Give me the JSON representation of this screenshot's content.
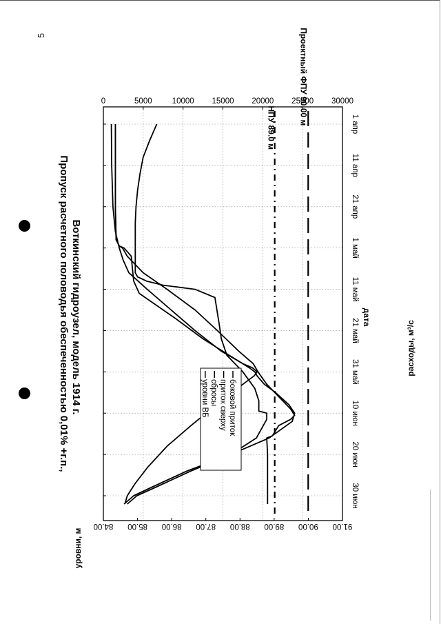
{
  "page_number": "5",
  "chart_data": {
    "type": "line",
    "title": "Пропуск расчетного половодья обеспеченностью 0,01% +г.п.,",
    "subtitle": "Воткинский гидроузел, модель 1914 г.",
    "xlabel": "дата",
    "ylabel": "расходы, м³/с",
    "y2label": "уровни, м",
    "x_ticks": [
      {
        "day": 0,
        "label": "1 апр"
      },
      {
        "day": 10,
        "label": "11 апр"
      },
      {
        "day": 20,
        "label": "21 апр"
      },
      {
        "day": 30,
        "label": "1 май"
      },
      {
        "day": 40,
        "label": "11 май"
      },
      {
        "day": 50,
        "label": "21 май"
      },
      {
        "day": 60,
        "label": "31 май"
      },
      {
        "day": 70,
        "label": "10 июн"
      },
      {
        "day": 80,
        "label": "20 июн"
      },
      {
        "day": 90,
        "label": "30 июн"
      }
    ],
    "xlim": [
      0,
      92
    ],
    "ylim": [
      0,
      30000
    ],
    "y_ticks": [
      "0",
      "5000",
      "10000",
      "15000",
      "20000",
      "25000",
      "30000"
    ],
    "y2lim": [
      84.0,
      91.0
    ],
    "y2_ticks": [
      "84.00",
      "85.00",
      "86.00",
      "87.00",
      "88.00",
      "89.00",
      "90.00",
      "91.00"
    ],
    "grid": true,
    "legend_position": "inside-center-left",
    "series": [
      {
        "name": "боковой приток",
        "axis": "left",
        "points": [
          [
            0,
            1000
          ],
          [
            10,
            1050
          ],
          [
            20,
            1200
          ],
          [
            26,
            1500
          ],
          [
            30,
            2000
          ],
          [
            33,
            2500
          ],
          [
            36,
            3200
          ],
          [
            40,
            5500
          ],
          [
            45,
            8500
          ],
          [
            50,
            11500
          ],
          [
            55,
            14800
          ],
          [
            58,
            17500
          ],
          [
            59,
            18700
          ],
          [
            60,
            19300
          ],
          [
            61,
            18900
          ],
          [
            63,
            17500
          ],
          [
            68,
            14200
          ],
          [
            73,
            11000
          ],
          [
            78,
            8000
          ],
          [
            83,
            5600
          ],
          [
            87,
            4000
          ],
          [
            90,
            3000
          ],
          [
            92,
            2700
          ]
        ]
      },
      {
        "name": "приток сверху",
        "axis": "left",
        "points": [
          [
            0,
            1500
          ],
          [
            10,
            1500
          ],
          [
            20,
            1500
          ],
          [
            28,
            1600
          ],
          [
            29.5,
            2000
          ],
          [
            30,
            2600
          ],
          [
            32,
            3500
          ],
          [
            34,
            3600
          ],
          [
            38,
            3800
          ],
          [
            41,
            4500
          ],
          [
            43,
            6000
          ],
          [
            47,
            9000
          ],
          [
            52,
            12500
          ],
          [
            56,
            15800
          ],
          [
            59,
            18300
          ],
          [
            60,
            19000
          ],
          [
            61,
            19300
          ],
          [
            63,
            20200
          ],
          [
            65,
            21600
          ],
          [
            68,
            23300
          ],
          [
            70,
            24000
          ],
          [
            72,
            23700
          ],
          [
            76,
            20800
          ],
          [
            80,
            16000
          ],
          [
            84,
            10500
          ],
          [
            88,
            6000
          ],
          [
            90,
            3800
          ],
          [
            92,
            2600
          ]
        ]
      },
      {
        "name": "сбросы",
        "axis": "left",
        "points": [
          [
            0,
            1500
          ],
          [
            10,
            1500
          ],
          [
            20,
            1500
          ],
          [
            28,
            1600
          ],
          [
            29.5,
            2000
          ],
          [
            30,
            2400
          ],
          [
            32,
            3000
          ],
          [
            36,
            5000
          ],
          [
            40,
            8000
          ],
          [
            45,
            11500
          ],
          [
            50,
            14300
          ],
          [
            55,
            17000
          ],
          [
            58,
            18800
          ],
          [
            60,
            19400
          ],
          [
            63,
            20500
          ],
          [
            66,
            22000
          ],
          [
            69,
            23500
          ],
          [
            70.5,
            24000
          ],
          [
            71.5,
            23500
          ],
          [
            73,
            22000
          ],
          [
            75.5,
            21200
          ],
          [
            76,
            20500
          ],
          [
            80,
            20600
          ],
          [
            90,
            20600
          ],
          [
            92,
            20600
          ]
        ]
      },
      {
        "name": "уровни ВБ",
        "axis": "left",
        "points": [
          [
            0,
            6700
          ],
          [
            4,
            5800
          ],
          [
            8,
            5000
          ],
          [
            12,
            4600
          ],
          [
            16,
            4300
          ],
          [
            20,
            4100
          ],
          [
            24,
            4000
          ],
          [
            28,
            4000
          ],
          [
            32,
            4000
          ],
          [
            36,
            4000
          ],
          [
            37,
            4300
          ],
          [
            38,
            5400
          ],
          [
            39,
            7500
          ],
          [
            40,
            11500
          ],
          [
            42,
            14000
          ],
          [
            48,
            14500
          ],
          [
            52,
            14800
          ],
          [
            56,
            15500
          ],
          [
            60,
            17500
          ],
          [
            64,
            19000
          ],
          [
            67,
            19500
          ],
          [
            69.5,
            19500
          ],
          [
            70,
            20500
          ],
          [
            71.5,
            20500
          ],
          [
            76,
            19200
          ],
          [
            80,
            16000
          ],
          [
            84,
            11000
          ],
          [
            88,
            6500
          ],
          [
            90,
            4200
          ],
          [
            92,
            3000
          ]
        ]
      }
    ],
    "reference_lines": [
      {
        "label": "Проектный ФПУ 90.00 м",
        "level_m": 90.0,
        "value": 25700,
        "style": "long-dash"
      },
      {
        "label": "НПУ 89.0 м",
        "level_m": 89.0,
        "value": 21500,
        "style": "dash-dot"
      }
    ]
  },
  "colors": {
    "line": "#000000",
    "grid": "#888888",
    "background": "#ffffff"
  }
}
